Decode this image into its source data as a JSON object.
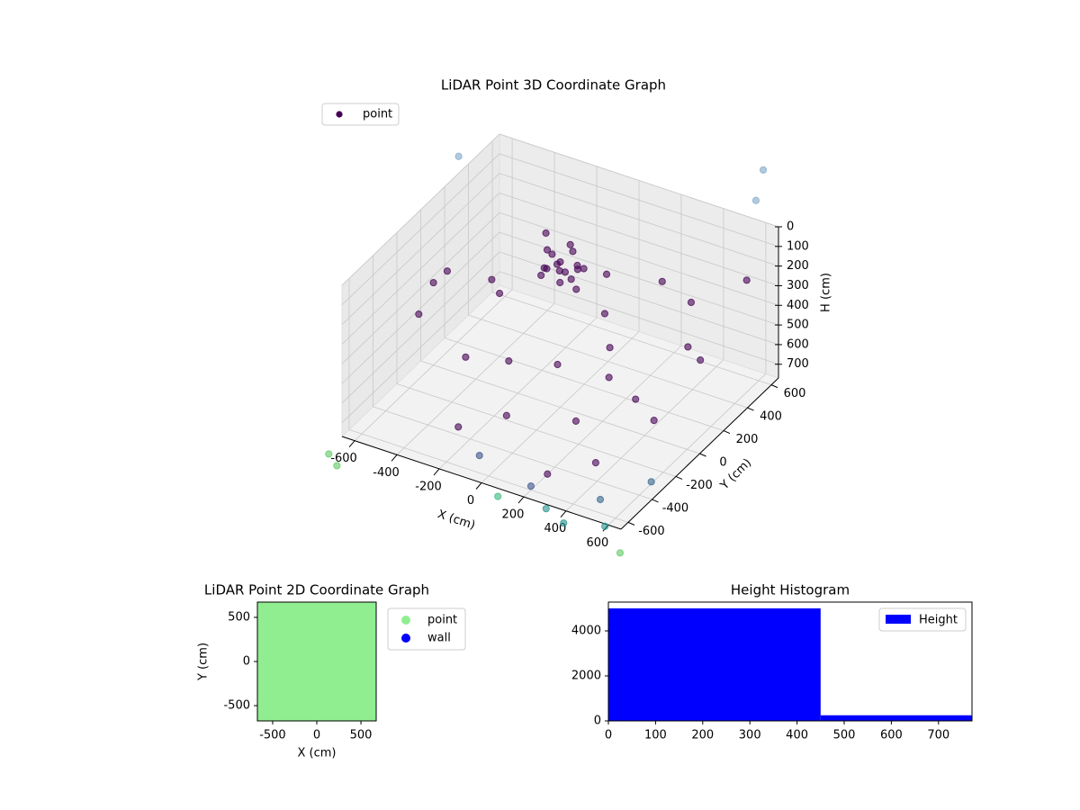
{
  "chart_data": [
    {
      "type": "scatter3d",
      "title": "LiDAR Point 3D Coordinate Graph",
      "xlabel": "X (cm)",
      "ylabel": "Y (cm)",
      "zlabel": "H (cm)",
      "xlim": [
        -660,
        660
      ],
      "ylim": [
        -660,
        660
      ],
      "zlim": [
        0,
        770
      ],
      "z_inverted": true,
      "xticks": [
        -600,
        -400,
        -200,
        0,
        200,
        400,
        600
      ],
      "yticks": [
        -600,
        -400,
        -200,
        0,
        200,
        400,
        600
      ],
      "zticks": [
        0,
        100,
        200,
        300,
        400,
        500,
        600,
        700
      ],
      "legend": "upper left",
      "series": [
        {
          "name": "point",
          "color": "#440154",
          "x": [
            0,
            40,
            -50,
            60,
            -30,
            20,
            -70,
            80,
            -20,
            10,
            100,
            -90,
            30,
            -40,
            70,
            -60,
            -500,
            -400,
            300,
            450,
            -200,
            200,
            500,
            -550,
            100,
            -300,
            350,
            -150,
            250,
            550,
            -450,
            150,
            -250,
            400,
            0,
            -100,
            600,
            -600,
            300,
            -350,
            450,
            50,
            200,
            -100,
            500,
            600,
            300,
            400,
            100,
            550,
            -700,
            -650,
            650,
            700,
            800,
            -650,
            650
          ],
          "y": [
            0,
            -30,
            20,
            40,
            -60,
            70,
            -10,
            -50,
            30,
            -20,
            20,
            50,
            90,
            -90,
            10,
            80,
            -300,
            200,
            -400,
            300,
            -500,
            500,
            -100,
            400,
            -200,
            100,
            450,
            350,
            -550,
            200,
            -150,
            150,
            -350,
            -300,
            -450,
            550,
            500,
            0,
            100,
            500,
            -500,
            300,
            -600,
            -500,
            -550,
            -300,
            -650,
            -680,
            -700,
            -600,
            -700,
            -720,
            -650,
            400,
            600,
            300,
            550
          ],
          "z": [
            30,
            50,
            20,
            70,
            40,
            10,
            80,
            60,
            100,
            120,
            40,
            30,
            90,
            60,
            150,
            110,
            300,
            450,
            500,
            250,
            650,
            350,
            600,
            550,
            400,
            700,
            600,
            200,
            700,
            450,
            150,
            500,
            400,
            300,
            550,
            650,
            200,
            350,
            680,
            300,
            600,
            250,
            750,
            760,
            740,
            760,
            800,
            820,
            780,
            830,
            850,
            880,
            900,
            -300,
            -200,
            -100,
            -350
          ],
          "colors": [
            "#440154",
            "#440154",
            "#440154",
            "#440154",
            "#440154",
            "#440154",
            "#440154",
            "#440154",
            "#440154",
            "#440154",
            "#440154",
            "#440154",
            "#440154",
            "#440154",
            "#440154",
            "#440154",
            "#440154",
            "#440154",
            "#440154",
            "#440154",
            "#440154",
            "#440154",
            "#440154",
            "#440154",
            "#440154",
            "#440154",
            "#440154",
            "#440154",
            "#440154",
            "#440154",
            "#440154",
            "#440154",
            "#440154",
            "#440154",
            "#440154",
            "#440154",
            "#440154",
            "#440154",
            "#440154",
            "#440154",
            "#440154",
            "#440154",
            "#3b528b",
            "#3b528b",
            "#31688e",
            "#31688e",
            "#21918c",
            "#21918c",
            "#35b779",
            "#21918c",
            "#5ec962",
            "#5ec962",
            "#5ec962",
            "#7ea6c8",
            "#7ea6c8",
            "#7ea6c8",
            "#7ea6c8"
          ]
        }
      ]
    },
    {
      "type": "scatter",
      "title": "LiDAR Point 2D Coordinate Graph",
      "xlabel": "X (cm)",
      "ylabel": "Y (cm)",
      "xlim": [
        -673,
        673
      ],
      "ylim": [
        -673,
        673
      ],
      "xticks": [
        -500,
        0,
        500
      ],
      "yticks": [
        -500,
        0,
        500
      ],
      "legend": "outside upper right",
      "series": [
        {
          "name": "point",
          "color": "#90ee90"
        },
        {
          "name": "wall",
          "color": "#0000ff"
        }
      ]
    },
    {
      "type": "histogram",
      "title": "Height Histogram",
      "xlim": [
        0,
        771
      ],
      "ylim": [
        0,
        5280
      ],
      "xticks": [
        0,
        100,
        200,
        300,
        400,
        500,
        600,
        700
      ],
      "yticks": [
        0,
        2000,
        4000
      ],
      "bins": [
        0,
        450,
        771
      ],
      "counts": [
        5000,
        250
      ],
      "legend": "upper right",
      "series": [
        {
          "name": "Height",
          "color": "#0000ff"
        }
      ]
    }
  ]
}
